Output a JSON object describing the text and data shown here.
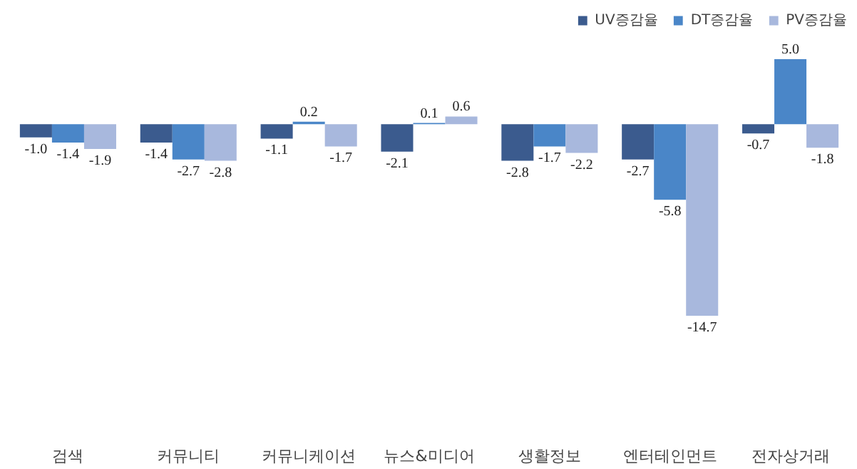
{
  "chart_data": {
    "type": "bar",
    "categories": [
      "검색",
      "커뮤니티",
      "커뮤니케이션",
      "뉴스&미디어",
      "생활정보",
      "엔터테인먼트",
      "전자상거래"
    ],
    "series": [
      {
        "name": "UV증감율",
        "color": "#3b5b8e",
        "values": [
          -1.0,
          -1.4,
          -1.1,
          -2.1,
          -2.8,
          -2.7,
          -0.7
        ],
        "value_labels": [
          "-1.0",
          "-1.4",
          "-1.1",
          "-2.1",
          "-2.8",
          "-2.7",
          "-0.7"
        ]
      },
      {
        "name": "DT증감율",
        "color": "#4a86c8",
        "values": [
          -1.4,
          -2.7,
          0.2,
          0.1,
          -1.7,
          -5.8,
          5.0
        ],
        "value_labels": [
          "-1.4",
          "-2.7",
          "0.2",
          "0.1",
          "-1.7",
          "-5.8",
          "5.0"
        ]
      },
      {
        "name": "PV증감율",
        "color": "#a8b8dd",
        "values": [
          -1.9,
          -2.8,
          -1.7,
          0.6,
          -2.2,
          -14.7,
          -1.8
        ],
        "value_labels": [
          "-1.9",
          "-2.8",
          "-1.7",
          "0.6",
          "-2.2",
          "-14.7",
          "-1.8"
        ]
      }
    ],
    "legend": "top right",
    "grid": false
  }
}
